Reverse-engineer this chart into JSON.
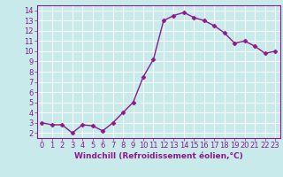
{
  "x": [
    0,
    1,
    2,
    3,
    4,
    5,
    6,
    7,
    8,
    9,
    10,
    11,
    12,
    13,
    14,
    15,
    16,
    17,
    18,
    19,
    20,
    21,
    22,
    23
  ],
  "y": [
    3.0,
    2.8,
    2.8,
    2.0,
    2.8,
    2.7,
    2.2,
    3.0,
    4.0,
    5.0,
    7.5,
    9.2,
    13.0,
    13.5,
    13.8,
    13.3,
    13.0,
    12.5,
    11.8,
    10.8,
    11.0,
    10.5,
    9.8,
    10.0
  ],
  "line_color": "#8b1a8b",
  "marker": "D",
  "marker_size": 2.5,
  "bg_color": "#c8eaea",
  "grid_color": "#ffffff",
  "xlabel": "Windchill (Refroidissement éolien,°C)",
  "xlabel_color": "#8b1a8b",
  "tick_color": "#8b1a8b",
  "spine_color": "#8b1a8b",
  "ylim": [
    1.5,
    14.5
  ],
  "xlim": [
    -0.5,
    23.5
  ],
  "yticks": [
    2,
    3,
    4,
    5,
    6,
    7,
    8,
    9,
    10,
    11,
    12,
    13,
    14
  ],
  "xtick_labels": [
    "0",
    "1",
    "2",
    "3",
    "4",
    "5",
    "6",
    "7",
    "8",
    "9",
    "10",
    "11",
    "12",
    "13",
    "14",
    "15",
    "16",
    "17",
    "18",
    "19",
    "20",
    "21",
    "22",
    "23"
  ],
  "xlabel_fontsize": 6.5,
  "tick_fontsize": 6.0,
  "linewidth": 1.0
}
